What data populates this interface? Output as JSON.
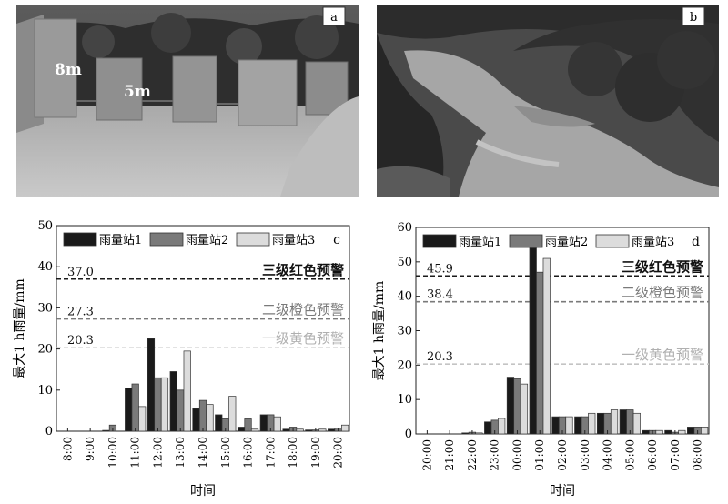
{
  "photos": [
    {
      "panel_label": "a",
      "labels": [
        "8m",
        "5m"
      ]
    },
    {
      "panel_label": "b"
    }
  ],
  "chart_data": [
    {
      "type": "bar",
      "panel_label": "c",
      "ylabel": "最大1 h雨量/mm",
      "xlabel": "时间",
      "ylim": [
        0,
        50
      ],
      "yticks": [
        0,
        10,
        20,
        30,
        40,
        50
      ],
      "categories": [
        "8:00",
        "9:00",
        "10:00",
        "11:00",
        "12:00",
        "13:00",
        "14:00",
        "15:00",
        "16:00",
        "17:00",
        "18:00",
        "19:00",
        "20:00"
      ],
      "series": [
        {
          "name": "雨量站1",
          "color": "#1a1a1a",
          "values": [
            0,
            0,
            0.2,
            10.5,
            22.5,
            14.5,
            5.5,
            4.0,
            1.0,
            4.0,
            0.5,
            0.3,
            0.5
          ]
        },
        {
          "name": "雨量站2",
          "color": "#7a7a7a",
          "values": [
            0,
            0,
            1.5,
            11.5,
            13.0,
            10.0,
            7.5,
            3.0,
            3.0,
            4.0,
            1.0,
            0.3,
            0.8
          ]
        },
        {
          "name": "雨量站3",
          "color": "#dcdcdc",
          "values": [
            0,
            0,
            0,
            6.0,
            13.0,
            19.5,
            6.5,
            8.5,
            0.5,
            3.5,
            0.5,
            0.5,
            1.5
          ]
        }
      ],
      "thresholds": [
        {
          "value": 37.0,
          "value_label": "37.0",
          "text": "三级红色预警",
          "color": "#1a1a1a",
          "text_color": "#111111"
        },
        {
          "value": 27.3,
          "value_label": "27.3",
          "text": "二级橙色预警",
          "color": "#7a7a7a",
          "text_color": "#7a7a7a"
        },
        {
          "value": 20.3,
          "value_label": "20.3",
          "text": "一级黄色预警",
          "color": "#c4c4c4",
          "text_color": "#b0b0b0"
        }
      ],
      "legend_position": "top-left"
    },
    {
      "type": "bar",
      "panel_label": "d",
      "ylabel": "最大1 h雨量/mm",
      "xlabel": "时间",
      "ylim": [
        0,
        60
      ],
      "yticks": [
        0,
        10,
        20,
        30,
        40,
        50,
        60
      ],
      "categories": [
        "20:00",
        "21:00",
        "22:00",
        "23:00",
        "00:00",
        "01:00",
        "02:00",
        "03:00",
        "04:00",
        "05:00",
        "06:00",
        "07:00",
        "08:00"
      ],
      "series": [
        {
          "name": "雨量站1",
          "color": "#1a1a1a",
          "values": [
            0,
            0,
            0.3,
            3.5,
            16.5,
            54.0,
            5.0,
            5.0,
            6.0,
            7.0,
            1.0,
            1.0,
            2.0
          ]
        },
        {
          "name": "雨量站2",
          "color": "#7a7a7a",
          "values": [
            0,
            0,
            0.5,
            4.0,
            16.0,
            47.0,
            5.0,
            5.0,
            6.0,
            7.0,
            1.0,
            0.5,
            2.0
          ]
        },
        {
          "name": "雨量站3",
          "color": "#dcdcdc",
          "values": [
            0,
            0,
            0.3,
            4.5,
            14.5,
            51.0,
            5.0,
            6.0,
            7.0,
            6.0,
            1.0,
            1.0,
            2.0
          ]
        }
      ],
      "thresholds": [
        {
          "value": 45.9,
          "value_label": "45.9",
          "text": "三级红色预警",
          "color": "#1a1a1a",
          "text_color": "#111111"
        },
        {
          "value": 38.4,
          "value_label": "38.4",
          "text": "二级橙色预警",
          "color": "#7a7a7a",
          "text_color": "#7a7a7a"
        },
        {
          "value": 20.3,
          "value_label": "20.3",
          "text": "一级黄色预警",
          "color": "#c4c4c4",
          "text_color": "#b0b0b0"
        }
      ],
      "legend_position": "top-left"
    }
  ]
}
